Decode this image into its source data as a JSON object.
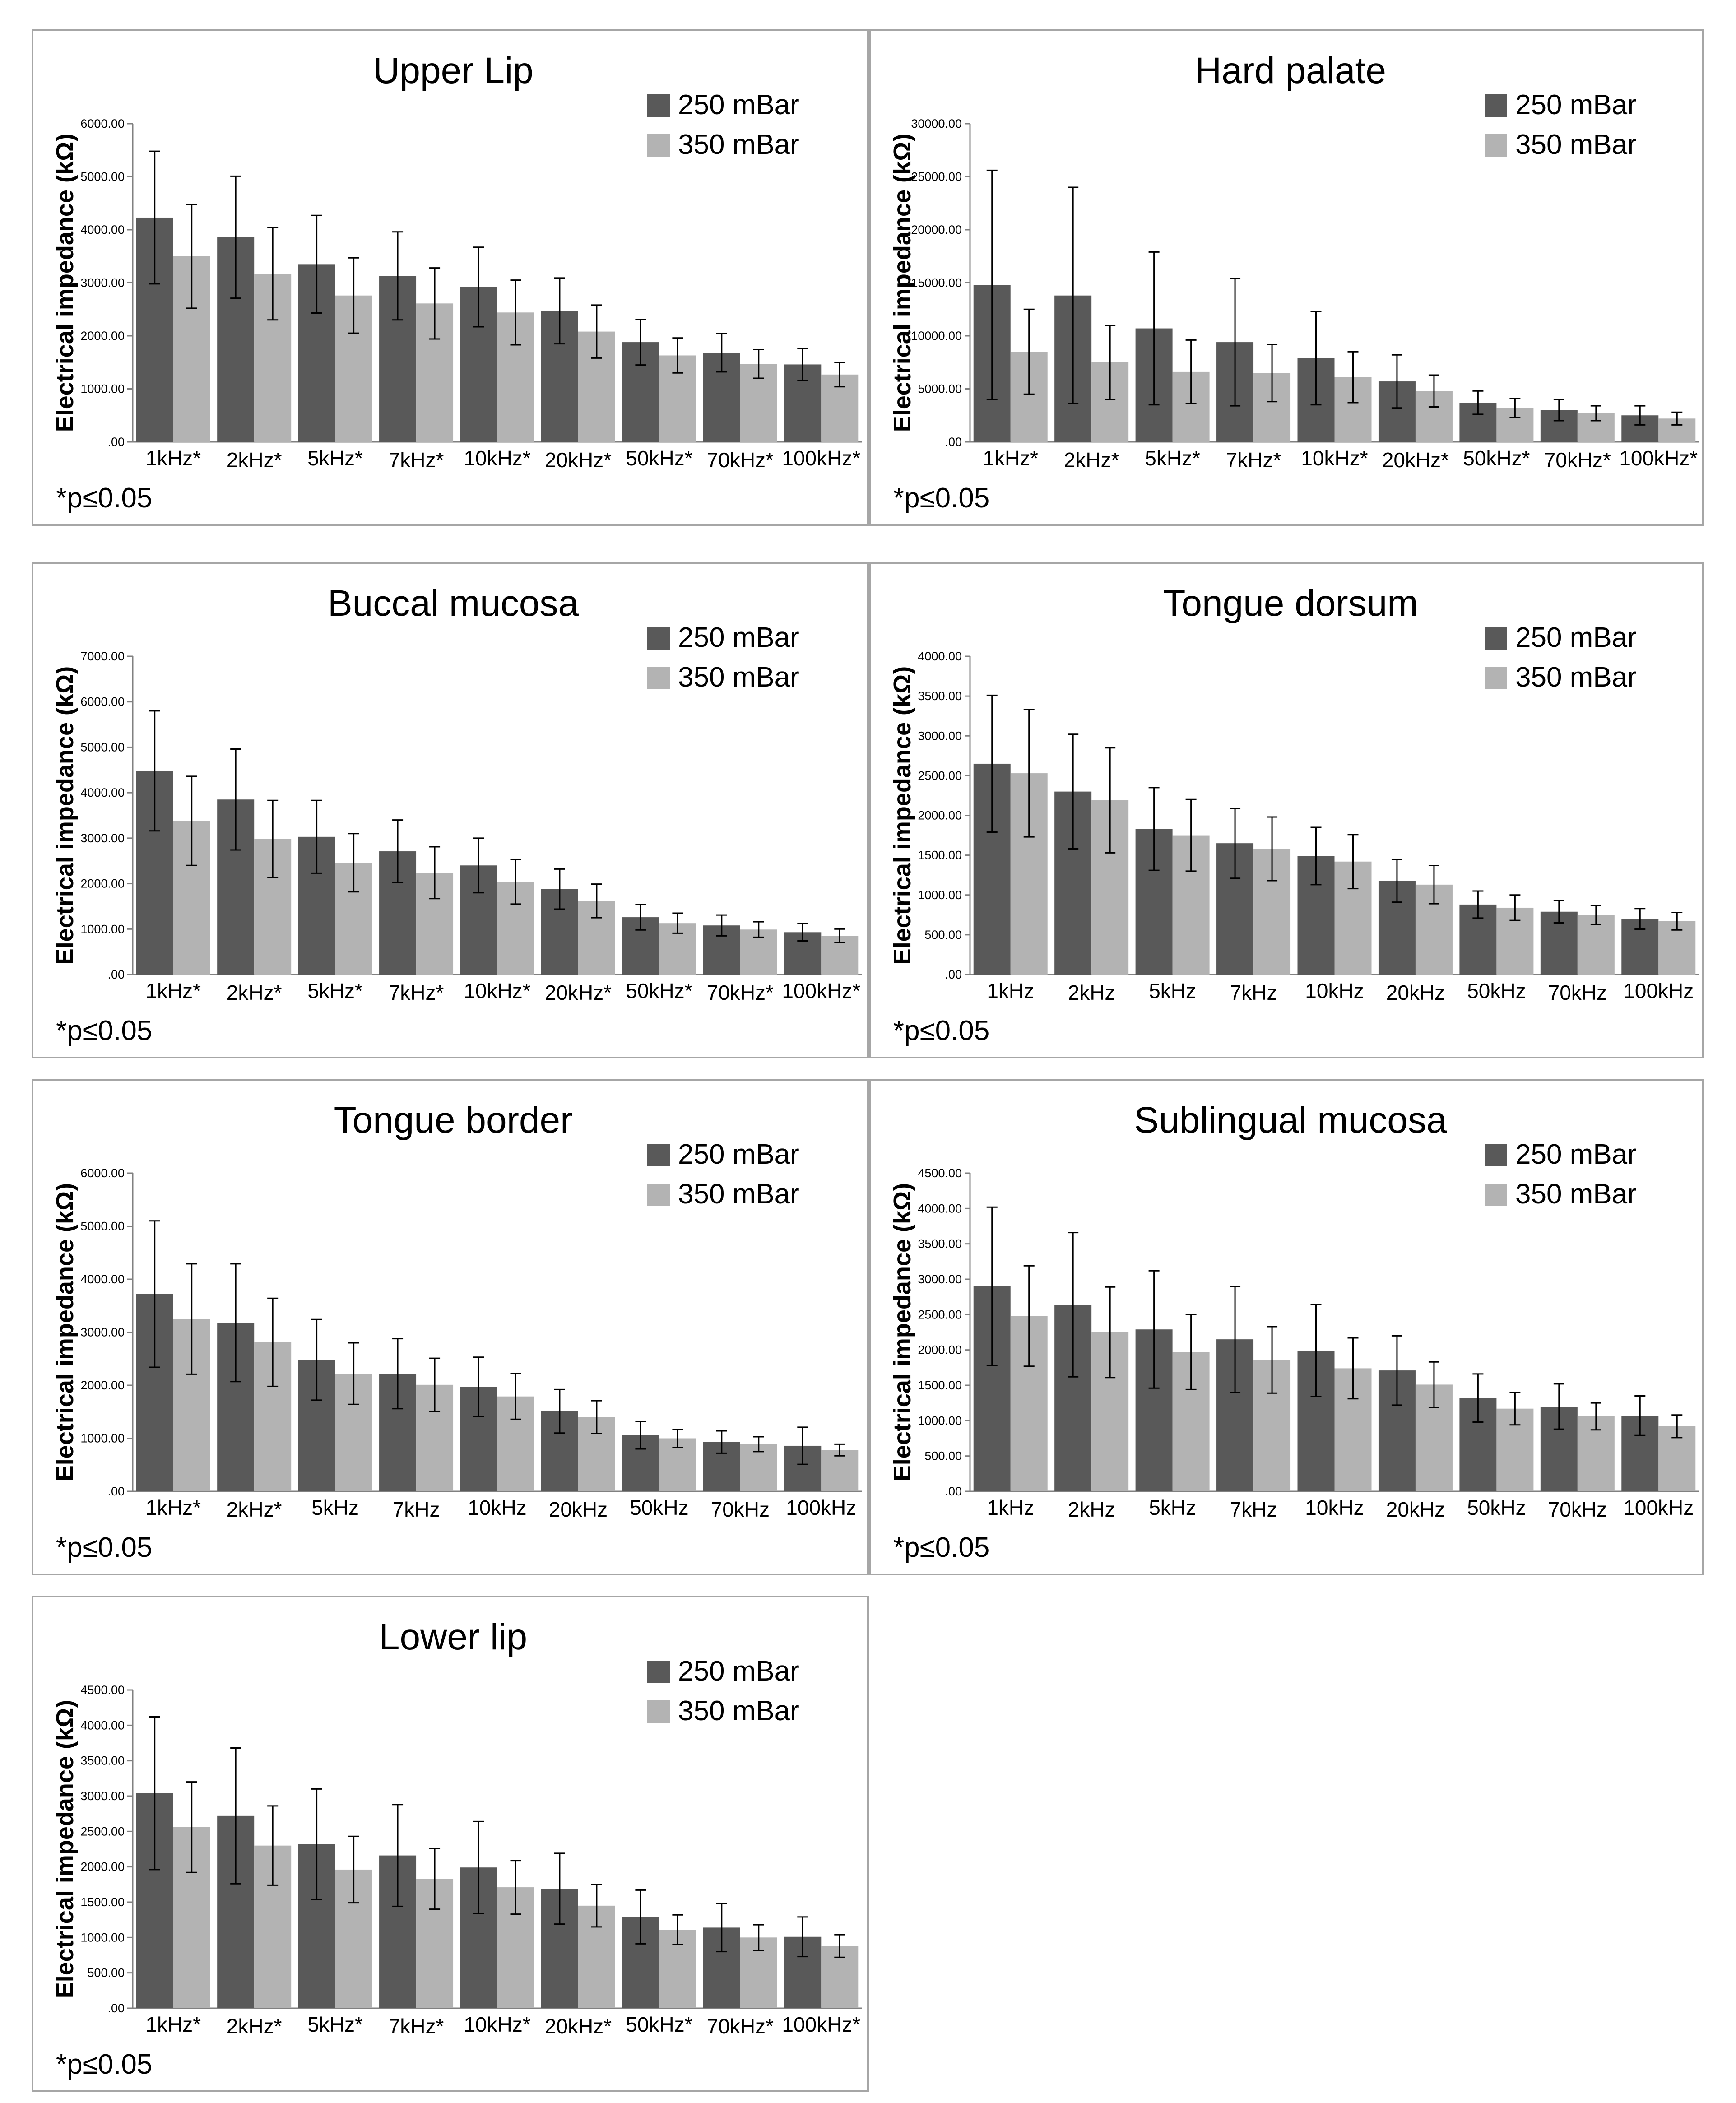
{
  "legend_labels": [
    "250 mBar",
    "350 mBar"
  ],
  "colors": {
    "s250": "#595959",
    "s350": "#b3b3b3",
    "axis": "#808080",
    "err": "#000000"
  },
  "chart_data": [
    {
      "type": "bar",
      "title": "Upper Lip",
      "ylabel": "Electrical impedance (kΩ)",
      "ylim": [
        0,
        6000
      ],
      "yticks": [
        ".00",
        "1000.00",
        "2000.00",
        "3000.00",
        "4000.00",
        "5000.00",
        "6000.00"
      ],
      "categories": [
        "1kHz*",
        "2kHz*",
        "5kHz*",
        "7kHz*",
        "10kHz*",
        "20kHz*",
        "50kHz*",
        "70kHz*",
        "100kHz*"
      ],
      "series": [
        {
          "name": "250 mBar",
          "values": [
            4230,
            3860,
            3350,
            3130,
            2920,
            2470,
            1880,
            1680,
            1460
          ],
          "err": [
            1250,
            1150,
            920,
            830,
            750,
            620,
            430,
            360,
            300
          ]
        },
        {
          "name": "350 mBar",
          "values": [
            3500,
            3170,
            2760,
            2610,
            2440,
            2080,
            1630,
            1470,
            1270
          ],
          "err": [
            980,
            870,
            710,
            670,
            610,
            500,
            330,
            270,
            230
          ]
        }
      ],
      "note": "*p≤0.05"
    },
    {
      "type": "bar",
      "title": "Hard palate",
      "ylabel": "Electrical impedance (kΩ)",
      "ylim": [
        0,
        30000
      ],
      "yticks": [
        ".00",
        "5000.00",
        "10000.00",
        "15000.00",
        "20000.00",
        "25000.00",
        "30000.00"
      ],
      "categories": [
        "1kHz*",
        "2kHz*",
        "5kHz*",
        "7kHz*",
        "10kHz*",
        "20kHz*",
        "50kHz*",
        "70kHz*",
        "100kHz*"
      ],
      "series": [
        {
          "name": "250 mBar",
          "values": [
            14800,
            13800,
            10700,
            9400,
            7900,
            5700,
            3700,
            3000,
            2500
          ],
          "err": [
            10800,
            10200,
            7200,
            6000,
            4400,
            2500,
            1100,
            1000,
            900
          ]
        },
        {
          "name": "350 mBar",
          "values": [
            8500,
            7500,
            6600,
            6500,
            6100,
            4800,
            3200,
            2700,
            2200
          ],
          "err": [
            4000,
            3500,
            3000,
            2700,
            2400,
            1500,
            900,
            700,
            600
          ]
        }
      ],
      "note": "*p≤0.05"
    },
    {
      "type": "bar",
      "title": "Buccal mucosa",
      "ylabel": "Electrical impedance (kΩ)",
      "ylim": [
        0,
        7000
      ],
      "yticks": [
        ".00",
        "1000.00",
        "2000.00",
        "3000.00",
        "4000.00",
        "5000.00",
        "6000.00",
        "7000.00"
      ],
      "categories": [
        "1kHz*",
        "2kHz*",
        "5kHz*",
        "7kHz*",
        "10kHz*",
        "20kHz*",
        "50kHz*",
        "70kHz*",
        "100kHz*"
      ],
      "series": [
        {
          "name": "250 mBar",
          "values": [
            4480,
            3850,
            3030,
            2710,
            2400,
            1880,
            1260,
            1080,
            930
          ],
          "err": [
            1320,
            1110,
            800,
            690,
            600,
            440,
            280,
            230,
            190
          ]
        },
        {
          "name": "350 mBar",
          "values": [
            3380,
            2980,
            2460,
            2240,
            2040,
            1620,
            1130,
            990,
            850
          ],
          "err": [
            980,
            850,
            640,
            570,
            490,
            370,
            220,
            170,
            150
          ]
        }
      ],
      "note": "*p≤0.05"
    },
    {
      "type": "bar",
      "title": "Tongue dorsum",
      "ylabel": "Electrical impedance (kΩ)",
      "ylim": [
        0,
        4000
      ],
      "yticks": [
        ".00",
        "500.00",
        "1000.00",
        "1500.00",
        "2000.00",
        "2500.00",
        "3000.00",
        "3500.00",
        "4000.00"
      ],
      "categories": [
        "1kHz",
        "2kHz",
        "5kHz",
        "7kHz",
        "10kHz",
        "20kHz",
        "50kHz",
        "70kHz",
        "100kHz"
      ],
      "series": [
        {
          "name": "250 mBar",
          "values": [
            2650,
            2300,
            1830,
            1650,
            1490,
            1180,
            880,
            790,
            700
          ],
          "err": [
            860,
            720,
            520,
            440,
            360,
            270,
            170,
            140,
            130
          ]
        },
        {
          "name": "350 mBar",
          "values": [
            2530,
            2190,
            1750,
            1580,
            1420,
            1130,
            840,
            750,
            670
          ],
          "err": [
            800,
            660,
            450,
            400,
            340,
            240,
            160,
            120,
            110
          ]
        }
      ],
      "note": "*p≤0.05"
    },
    {
      "type": "bar",
      "title": "Tongue border",
      "ylabel": "Electrical impedance (kΩ)",
      "ylim": [
        0,
        6000
      ],
      "yticks": [
        ".00",
        "1000.00",
        "2000.00",
        "3000.00",
        "4000.00",
        "5000.00",
        "6000.00"
      ],
      "categories": [
        "1kHz*",
        "2kHz*",
        "5kHz",
        "7kHz",
        "10kHz",
        "20kHz",
        "50kHz",
        "70kHz",
        "100kHz"
      ],
      "series": [
        {
          "name": "250 mBar",
          "values": [
            3720,
            3180,
            2480,
            2220,
            1970,
            1510,
            1060,
            930,
            860
          ],
          "err": [
            1380,
            1110,
            760,
            660,
            560,
            410,
            260,
            210,
            350
          ]
        },
        {
          "name": "350 mBar",
          "values": [
            3250,
            2810,
            2220,
            2010,
            1790,
            1400,
            1000,
            890,
            780
          ],
          "err": [
            1040,
            830,
            580,
            500,
            430,
            310,
            170,
            140,
            110
          ]
        }
      ],
      "note": "*p≤0.05"
    },
    {
      "type": "bar",
      "title": "Sublingual mucosa",
      "ylabel": "Electrical impedance (kΩ)",
      "ylim": [
        0,
        4500
      ],
      "yticks": [
        ".00",
        "500.00",
        "1000.00",
        "1500.00",
        "2000.00",
        "2500.00",
        "3000.00",
        "3500.00",
        "4000.00",
        "4500.00"
      ],
      "categories": [
        "1kHz",
        "2kHz",
        "5kHz",
        "7kHz",
        "10kHz",
        "20kHz",
        "50kHz",
        "70kHz",
        "100kHz"
      ],
      "series": [
        {
          "name": "250 mBar",
          "values": [
            2900,
            2640,
            2290,
            2150,
            1990,
            1710,
            1320,
            1200,
            1070
          ],
          "err": [
            1120,
            1020,
            830,
            750,
            650,
            490,
            340,
            320,
            280
          ]
        },
        {
          "name": "350 mBar",
          "values": [
            2480,
            2250,
            1970,
            1860,
            1740,
            1510,
            1170,
            1060,
            920
          ],
          "err": [
            710,
            640,
            530,
            470,
            430,
            320,
            230,
            190,
            160
          ]
        }
      ],
      "note": "*p≤0.05"
    },
    {
      "type": "bar",
      "title": "Lower lip",
      "ylabel": "Electrical impedance (kΩ)",
      "ylim": [
        0,
        4500
      ],
      "yticks": [
        ".00",
        "500.00",
        "1000.00",
        "1500.00",
        "2000.00",
        "2500.00",
        "3000.00",
        "3500.00",
        "4000.00",
        "4500.00"
      ],
      "categories": [
        "1kHz*",
        "2kHz*",
        "5kHz*",
        "7kHz*",
        "10kHz*",
        "20kHz*",
        "50kHz*",
        "70kHz*",
        "100kHz*"
      ],
      "series": [
        {
          "name": "250 mBar",
          "values": [
            3040,
            2720,
            2320,
            2160,
            1990,
            1690,
            1290,
            1140,
            1010
          ],
          "err": [
            1080,
            960,
            780,
            720,
            650,
            500,
            380,
            340,
            280
          ]
        },
        {
          "name": "350 mBar",
          "values": [
            2560,
            2300,
            1960,
            1830,
            1710,
            1450,
            1110,
            1000,
            880
          ],
          "err": [
            640,
            560,
            470,
            430,
            380,
            300,
            210,
            180,
            160
          ]
        }
      ],
      "note": "*p≤0.05"
    }
  ]
}
